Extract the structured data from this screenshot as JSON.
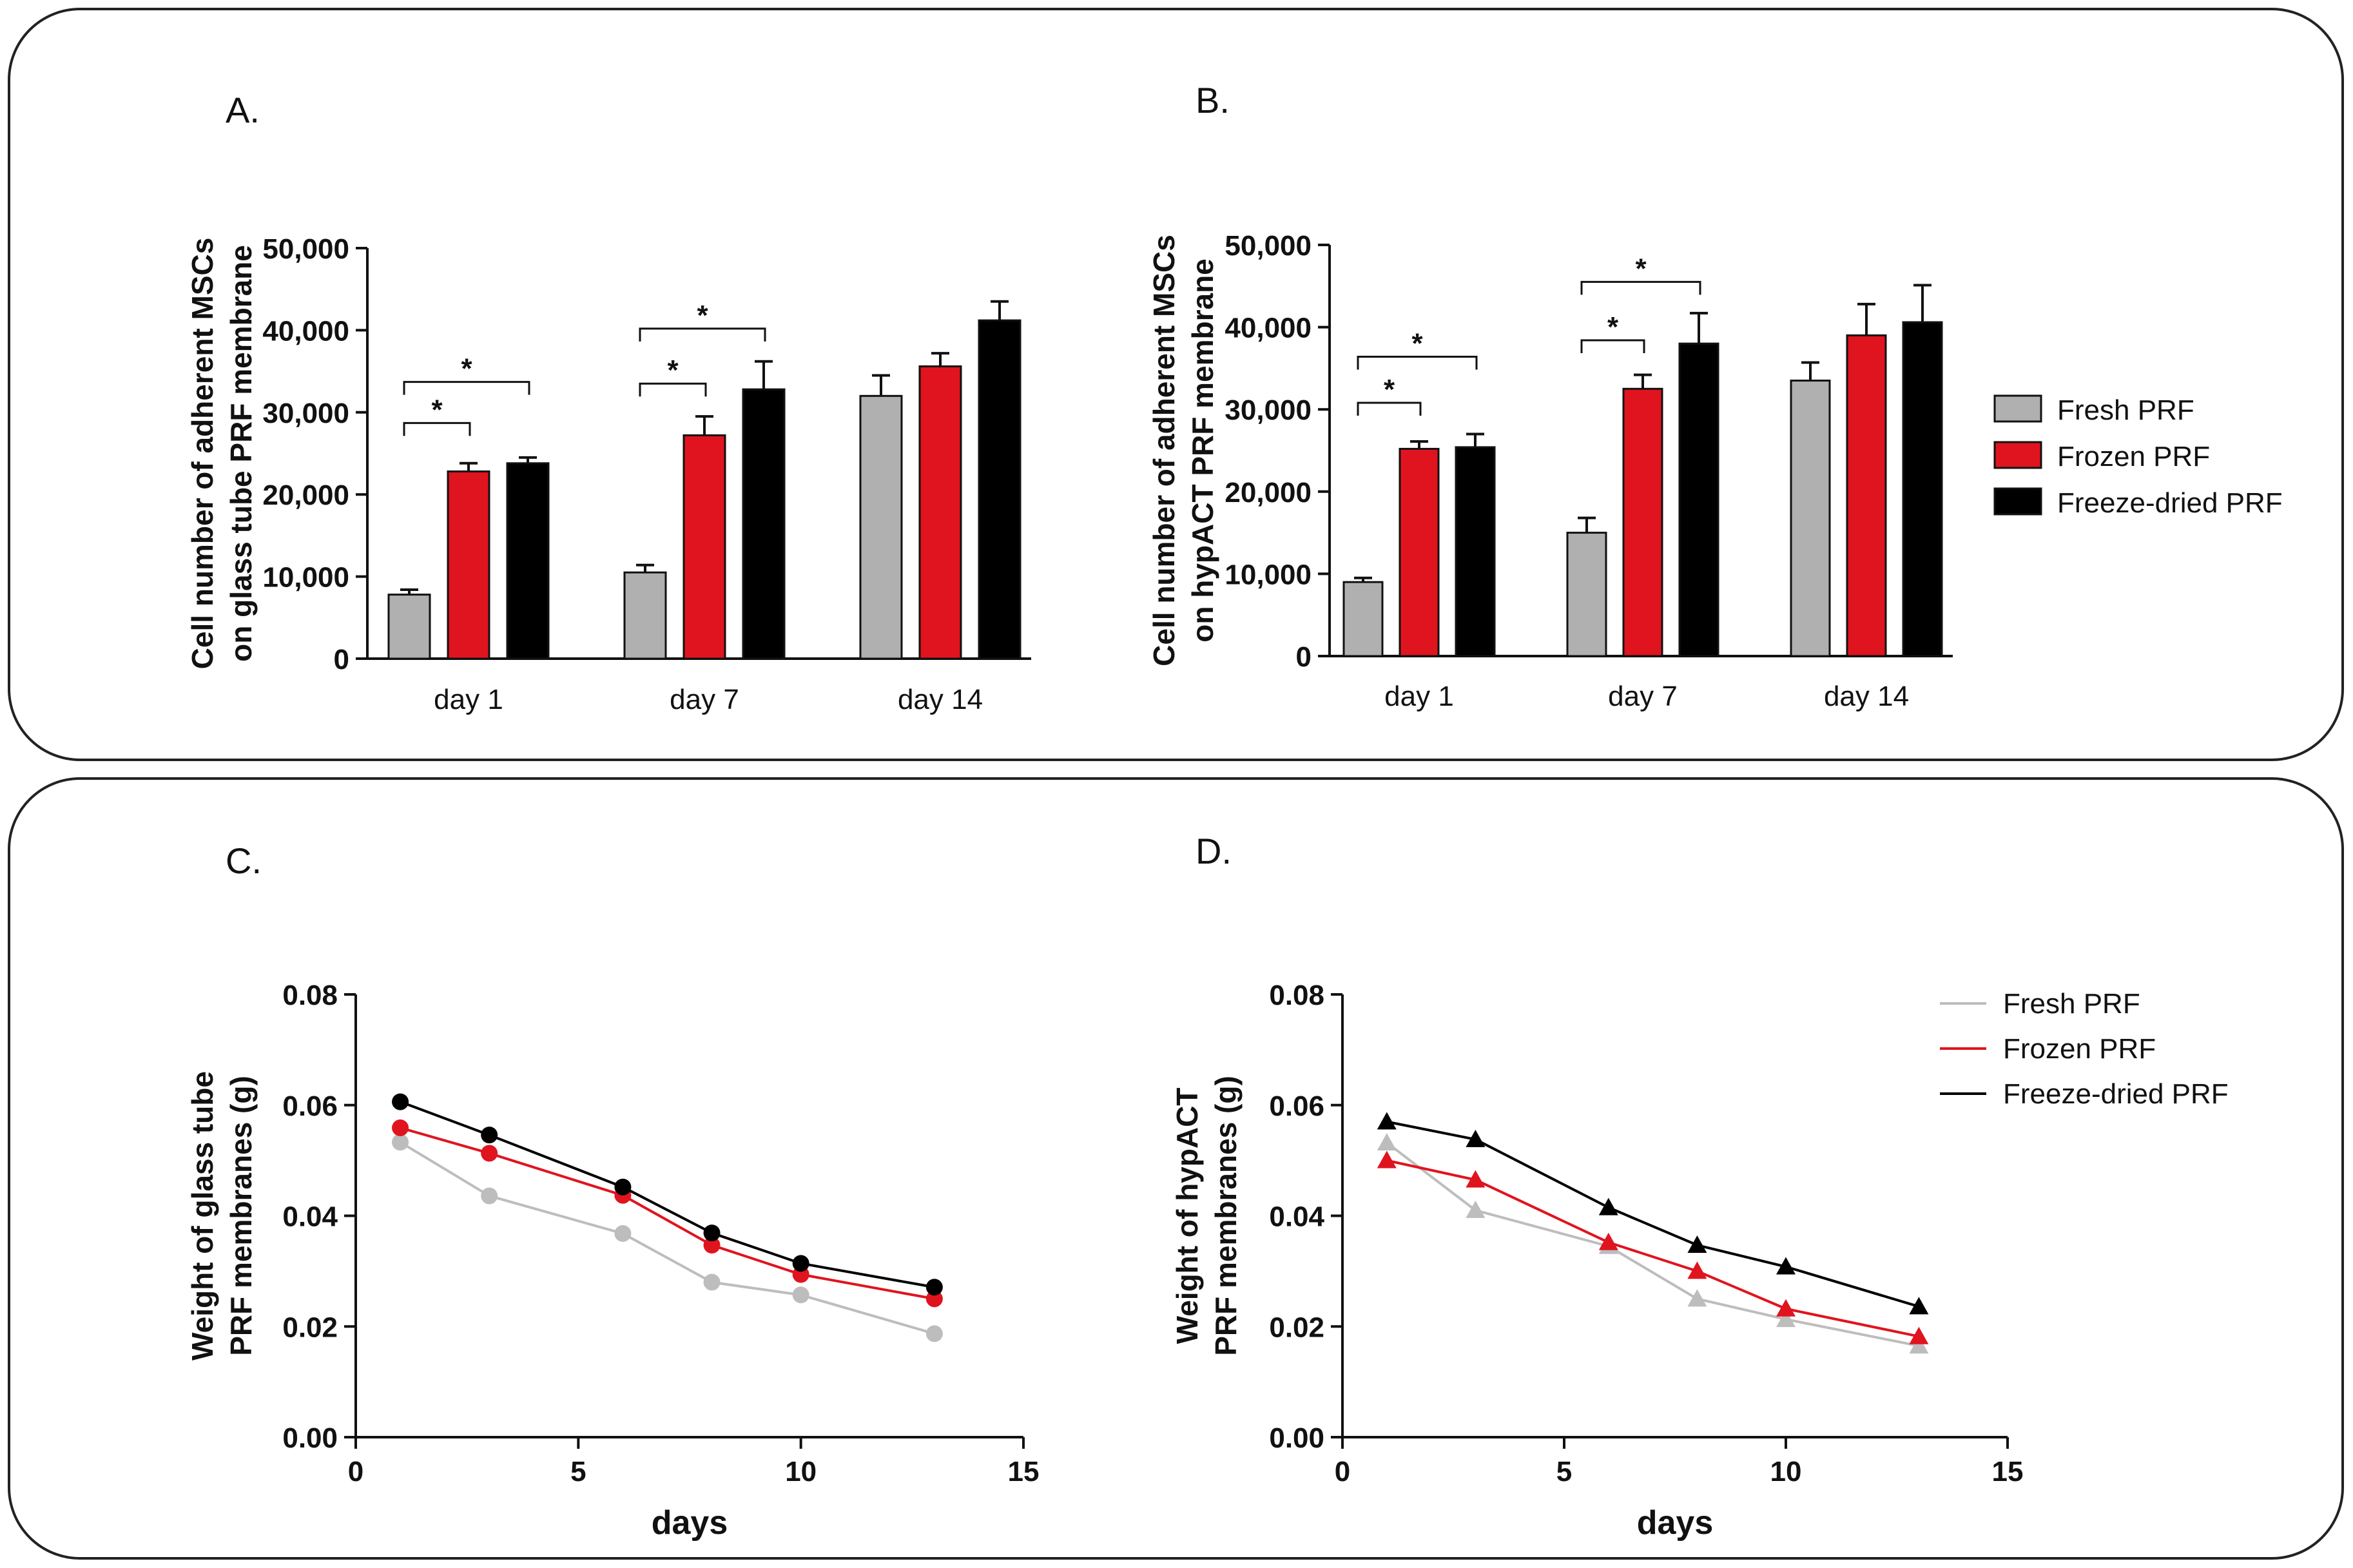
{
  "chart_data": [
    {
      "id": "A",
      "type": "bar",
      "panel_label": "A.",
      "ylabel_lines": [
        "Cell number of adherent MSCs",
        "on glass tube PRF membrane"
      ],
      "categories": [
        "day 1",
        "day 7",
        "day 14"
      ],
      "ylim": [
        0,
        50000
      ],
      "ytick_labels": [
        "0",
        "10,000",
        "20,000",
        "30,000",
        "40,000",
        "50,000"
      ],
      "series": [
        {
          "name": "Fresh PRF",
          "color": "#b0b0b0",
          "values": [
            7800,
            10500,
            32000
          ],
          "errors": [
            600,
            900,
            2500
          ]
        },
        {
          "name": "Frozen PRF",
          "color": "#e0141e",
          "values": [
            22800,
            27200,
            35600
          ],
          "errors": [
            1000,
            2300,
            1600
          ]
        },
        {
          "name": "Freeze-dried PRF",
          "color": "#000000",
          "values": [
            23800,
            32800,
            41200
          ],
          "errors": [
            700,
            3400,
            2300
          ]
        }
      ],
      "significance": [
        {
          "group": 0,
          "from": 0,
          "to": 1,
          "y": 28700,
          "label": "*"
        },
        {
          "group": 0,
          "from": 0,
          "to": 2,
          "y": 33700,
          "label": "*"
        },
        {
          "group": 1,
          "from": 0,
          "to": 1,
          "y": 33500,
          "label": "*"
        },
        {
          "group": 1,
          "from": 0,
          "to": 2,
          "y": 40200,
          "label": "*"
        }
      ]
    },
    {
      "id": "B",
      "type": "bar",
      "panel_label": "B.",
      "ylabel_lines": [
        "Cell number of adherent MSCs",
        "on hypACT PRF membrane"
      ],
      "categories": [
        "day 1",
        "day 7",
        "day 14"
      ],
      "ylim": [
        0,
        50000
      ],
      "ytick_labels": [
        "0",
        "10,000",
        "20,000",
        "30,000",
        "40,000",
        "50,000"
      ],
      "series": [
        {
          "name": "Fresh PRF",
          "color": "#b0b0b0",
          "values": [
            9000,
            15000,
            33500
          ],
          "errors": [
            500,
            1800,
            2200
          ]
        },
        {
          "name": "Frozen PRF",
          "color": "#e0141e",
          "values": [
            25200,
            32500,
            39000
          ],
          "errors": [
            900,
            1700,
            3800
          ]
        },
        {
          "name": "Freeze-dried PRF",
          "color": "#000000",
          "values": [
            25400,
            38000,
            40600
          ],
          "errors": [
            1600,
            3700,
            4500
          ]
        }
      ],
      "significance": [
        {
          "group": 0,
          "from": 0,
          "to": 1,
          "y": 30800,
          "label": "*"
        },
        {
          "group": 0,
          "from": 0,
          "to": 2,
          "y": 36400,
          "label": "*"
        },
        {
          "group": 1,
          "from": 0,
          "to": 1,
          "y": 38400,
          "label": "*"
        },
        {
          "group": 1,
          "from": 0,
          "to": 2,
          "y": 45500,
          "label": "*"
        }
      ]
    },
    {
      "id": "C",
      "type": "line",
      "panel_label": "C.",
      "marker": "circle",
      "ylabel_lines": [
        "Weight of glass tube",
        "PRF membranes (g)"
      ],
      "xlabel": "days",
      "xlim": [
        0,
        15
      ],
      "ylim": [
        0.0,
        0.08
      ],
      "xtick_labels": [
        "0",
        "5",
        "10",
        "15"
      ],
      "ytick_labels": [
        "0.00",
        "0.02",
        "0.04",
        "0.06",
        "0.08"
      ],
      "x": [
        1,
        3,
        6,
        8,
        10,
        13
      ],
      "series": [
        {
          "name": "Fresh PRF",
          "color": "#bdbdbd",
          "values": [
            0.0533,
            0.0436,
            0.0368,
            0.028,
            0.0257,
            0.0187
          ]
        },
        {
          "name": "Frozen PRF",
          "color": "#e0141e",
          "values": [
            0.0559,
            0.0513,
            0.0437,
            0.0347,
            0.0294,
            0.025
          ]
        },
        {
          "name": "Freeze-dried PRF",
          "color": "#000000",
          "values": [
            0.0606,
            0.0546,
            0.0452,
            0.0369,
            0.0314,
            0.0271
          ]
        }
      ]
    },
    {
      "id": "D",
      "type": "line",
      "panel_label": "D.",
      "marker": "triangle",
      "ylabel_lines": [
        "Weight of hypACT",
        "PRF membranes (g)"
      ],
      "xlabel": "days",
      "xlim": [
        0,
        15
      ],
      "ylim": [
        0.0,
        0.08
      ],
      "xtick_labels": [
        "0",
        "5",
        "10",
        "15"
      ],
      "ytick_labels": [
        "0.00",
        "0.02",
        "0.04",
        "0.06",
        "0.08"
      ],
      "x": [
        1,
        3,
        6,
        8,
        10,
        13
      ],
      "series": [
        {
          "name": "Fresh PRF",
          "color": "#bdbdbd",
          "values": [
            0.0532,
            0.041,
            0.0345,
            0.025,
            0.0213,
            0.0165
          ]
        },
        {
          "name": "Frozen PRF",
          "color": "#e0141e",
          "values": [
            0.05,
            0.0465,
            0.0352,
            0.03,
            0.0232,
            0.0182
          ]
        },
        {
          "name": "Freeze-dried PRF",
          "color": "#000000",
          "values": [
            0.057,
            0.0538,
            0.0415,
            0.0347,
            0.0308,
            0.0236
          ]
        }
      ]
    }
  ],
  "legend_top": {
    "items": [
      {
        "label": "Fresh PRF",
        "color": "#b0b0b0"
      },
      {
        "label": "Frozen PRF",
        "color": "#e0141e"
      },
      {
        "label": "Freeze-dried PRF",
        "color": "#000000"
      }
    ]
  },
  "legend_bottom": {
    "items": [
      {
        "label": "Fresh PRF",
        "color": "#bdbdbd"
      },
      {
        "label": "Frozen PRF",
        "color": "#e0141e"
      },
      {
        "label": "Freeze-dried PRF",
        "color": "#000000"
      }
    ]
  }
}
